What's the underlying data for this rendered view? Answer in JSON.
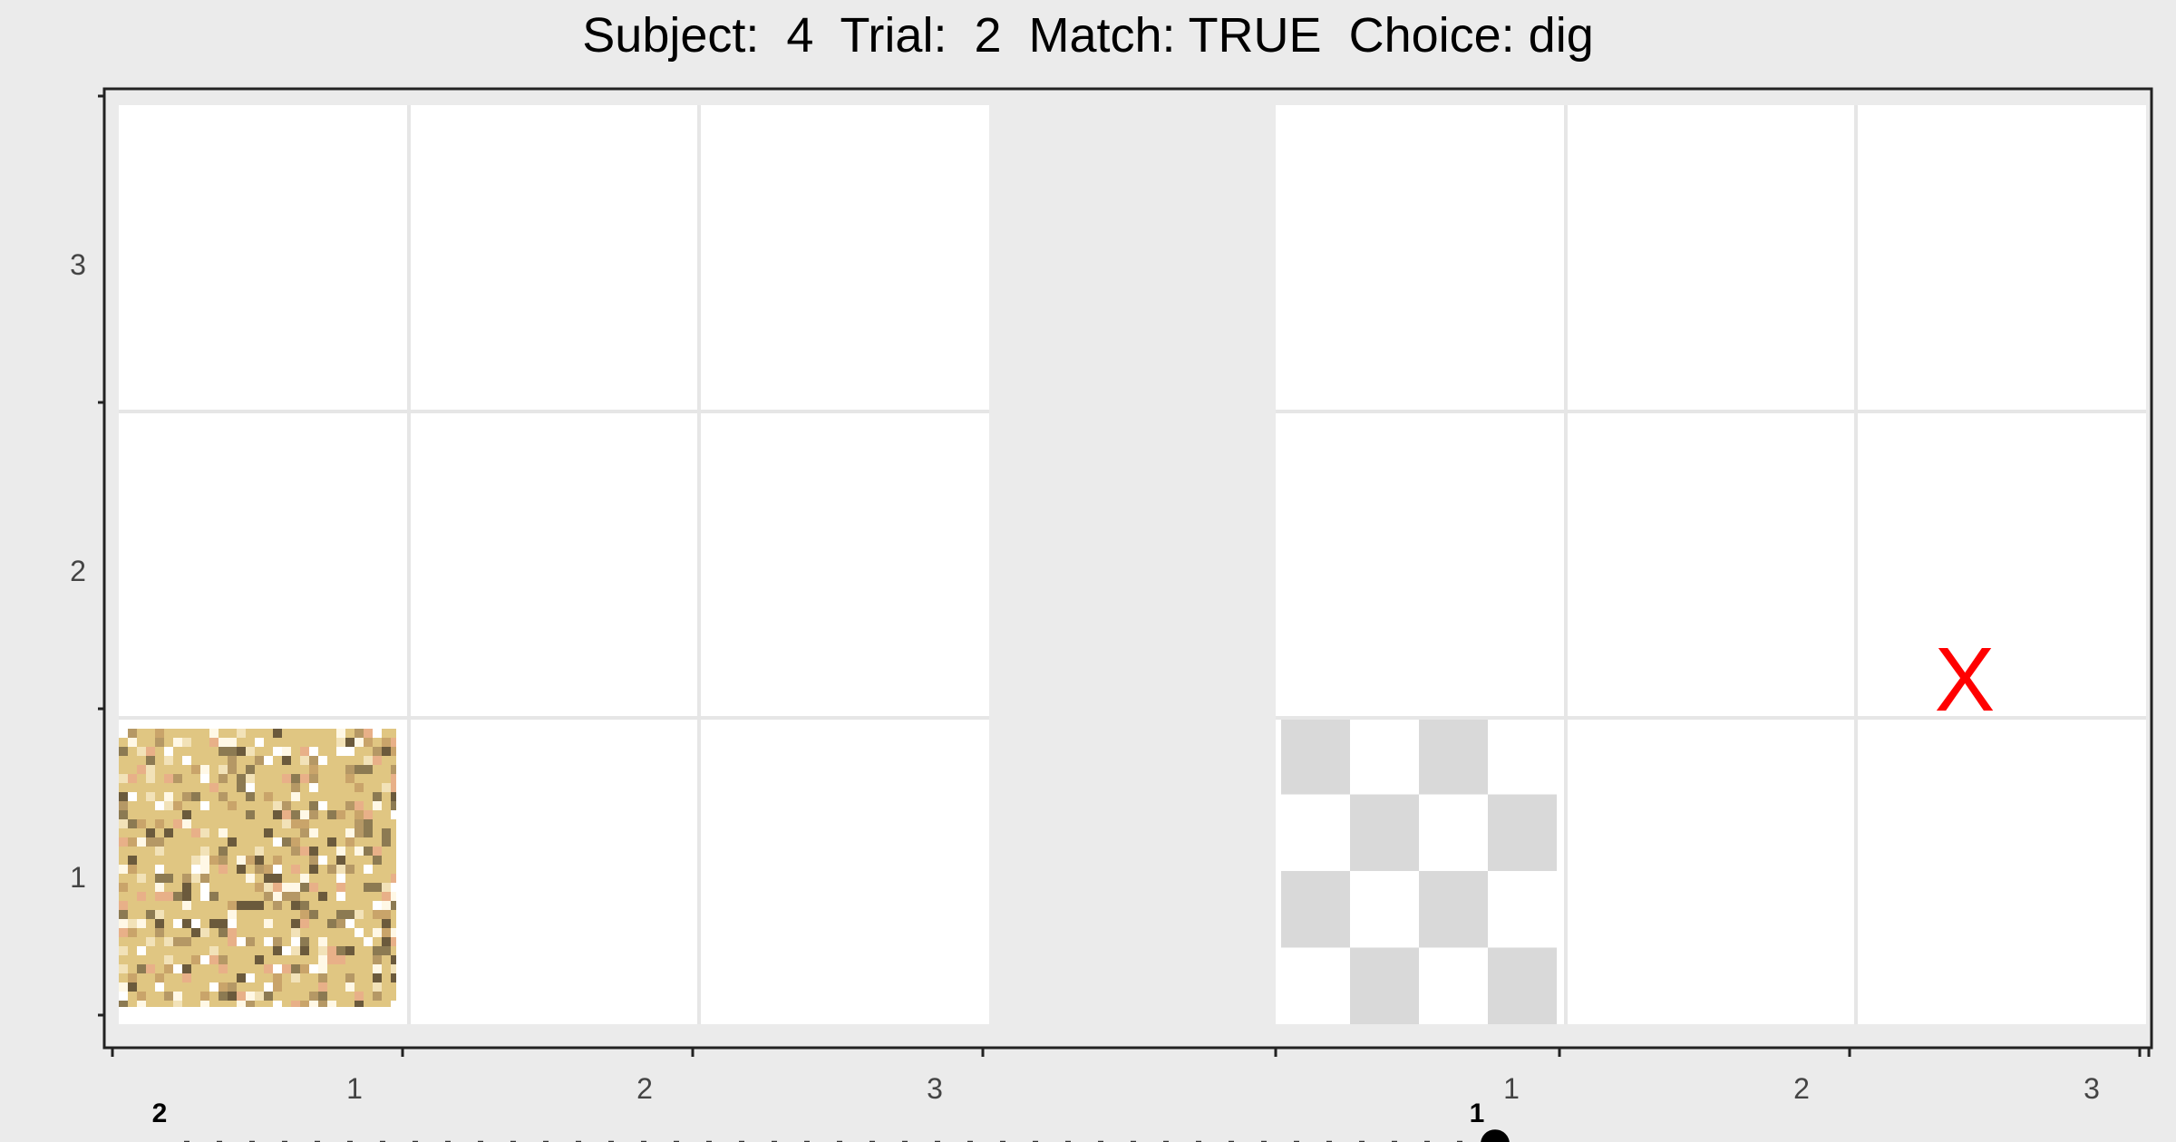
{
  "chart_data": {
    "type": "scatter",
    "title": "Subject:  4  Trial:  2  Match: TRUE  Choice: dig",
    "xlabel": "",
    "ylabel": "",
    "panels": [
      {
        "x_ticks": [
          "1",
          "2",
          "3"
        ],
        "y_ticks": [
          "1",
          "2",
          "3"
        ]
      },
      {
        "x_ticks": [
          "1",
          "2",
          "3"
        ],
        "y_ticks": [
          "1",
          "2",
          "3"
        ]
      }
    ],
    "grid": true,
    "cells": [
      {
        "panel": 1,
        "col": 1,
        "row": 1,
        "fill": "sand-noise-texture"
      },
      {
        "panel": 2,
        "col": 1,
        "row": 1,
        "fill": "grey-checkerboard"
      }
    ],
    "points": [
      {
        "label": "1",
        "panel": 2,
        "x": 1.0,
        "y": 0.6,
        "marker": "filled-circle"
      },
      {
        "label": "2",
        "panel": 1,
        "x": 0.5,
        "y": 0.6,
        "marker": "none"
      }
    ],
    "path": {
      "style": "dotted",
      "from": "point 1",
      "to": "point 2"
    },
    "target_marker": {
      "label": "X",
      "panel": 2,
      "x": 3,
      "y": 1.6,
      "color": "#ff0000"
    },
    "colors": {
      "background": "#ebebeb",
      "panel": "#ffffff",
      "grid": "#e6e6e6",
      "sand_base": "#e0c682",
      "checker": "#d9d9d9",
      "path": "#333333",
      "marker": "#000000",
      "x_marker": "#ff0000"
    }
  }
}
